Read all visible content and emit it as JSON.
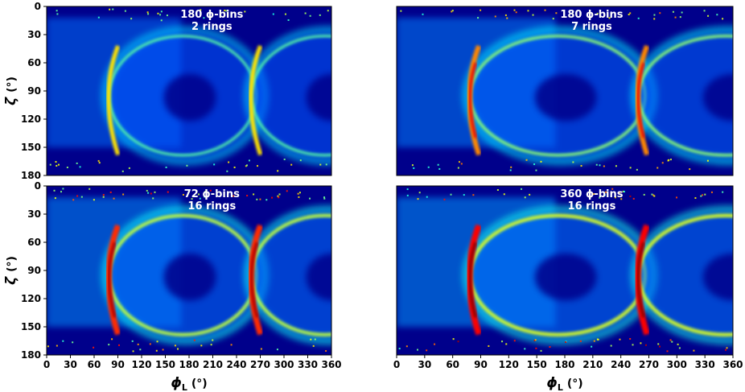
{
  "chart_data": [
    {
      "type": "heatmap",
      "annotation": [
        "180 ϕ-bins",
        "2 rings"
      ],
      "phi_bins": 180,
      "rings": 2,
      "intensity": 0.45,
      "xlabel": "ϕ",
      "xlabel_sub": "L",
      "xunit": "(°)",
      "ylabel": "ζ",
      "yunit": "(°)",
      "xlim": [
        0,
        360
      ],
      "ylim": [
        0,
        180
      ],
      "y_inverted": true,
      "xticks": [],
      "yticks": [
        "0",
        "30",
        "60",
        "90",
        "120",
        "150",
        "180"
      ],
      "cmap": "jet",
      "background": "#00008b"
    },
    {
      "type": "heatmap",
      "annotation": [
        "180 ϕ-bins",
        "7 rings"
      ],
      "phi_bins": 180,
      "rings": 7,
      "intensity": 0.65,
      "xlabel": "ϕ",
      "xlabel_sub": "L",
      "xunit": "(°)",
      "ylabel": "ζ",
      "yunit": "(°)",
      "xlim": [
        0,
        360
      ],
      "ylim": [
        0,
        180
      ],
      "y_inverted": true,
      "xticks": [],
      "yticks": [],
      "cmap": "jet",
      "background": "#00008b"
    },
    {
      "type": "heatmap",
      "annotation": [
        "72 ϕ-bins",
        "16 rings"
      ],
      "phi_bins": 72,
      "rings": 16,
      "intensity": 0.85,
      "xlabel": "ϕ",
      "xlabel_sub": "L",
      "xunit": "(°)",
      "ylabel": "ζ",
      "yunit": "(°)",
      "xlim": [
        0,
        360
      ],
      "ylim": [
        0,
        180
      ],
      "y_inverted": true,
      "xticks": [
        "0",
        "30",
        "60",
        "90",
        "120",
        "150",
        "180",
        "210",
        "240",
        "270",
        "300",
        "330",
        "360"
      ],
      "yticks": [
        "0",
        "30",
        "60",
        "90",
        "120",
        "150",
        "180"
      ],
      "cmap": "jet",
      "background": "#00008b"
    },
    {
      "type": "heatmap",
      "annotation": [
        "360 ϕ-bins",
        "16 rings"
      ],
      "phi_bins": 360,
      "rings": 16,
      "intensity": 0.95,
      "xlabel": "ϕ",
      "xlabel_sub": "L",
      "xunit": "(°)",
      "ylabel": "ζ",
      "yunit": "(°)",
      "xlim": [
        0,
        360
      ],
      "ylim": [
        0,
        180
      ],
      "y_inverted": true,
      "xticks": [
        "0",
        "30",
        "60",
        "90",
        "120",
        "150",
        "180",
        "210",
        "240",
        "270",
        "300",
        "330",
        "360"
      ],
      "yticks": [],
      "cmap": "jet",
      "background": "#00008b"
    }
  ]
}
